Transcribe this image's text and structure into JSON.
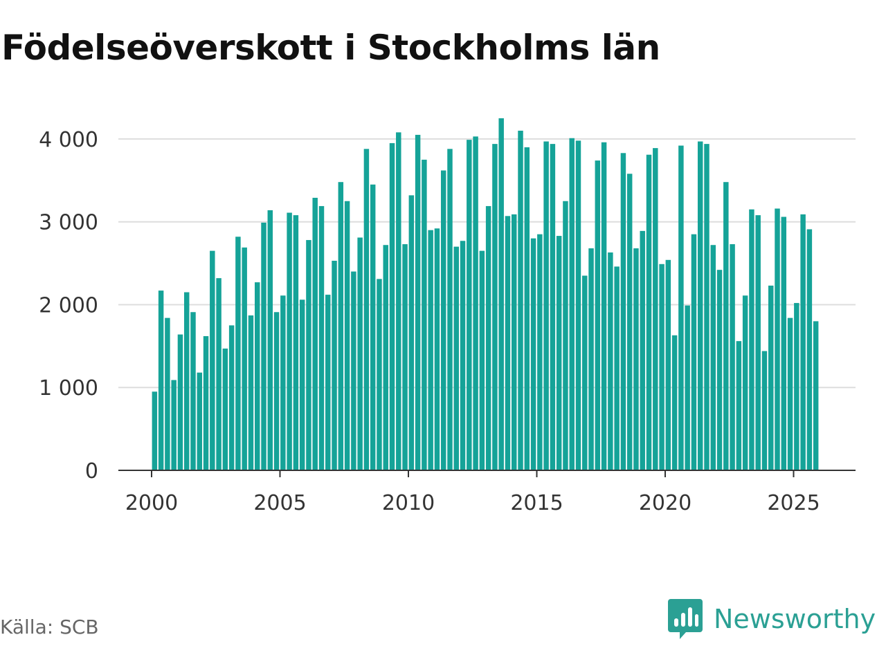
{
  "title": "Födelseöverskott i Stockholms län",
  "source": "Källa: SCB",
  "brand": "Newsworthy",
  "colors": {
    "bar": "#15a398",
    "brand": "#2ba094",
    "grid": "#dddddd",
    "axis": "#333333"
  },
  "chart_data": {
    "type": "bar",
    "title": "Födelseöverskott i Stockholms län",
    "xlabel": "",
    "ylabel": "",
    "ylim": [
      0,
      4300
    ],
    "xlim": [
      1999.7,
      2026.9
    ],
    "grid": true,
    "legend": "none",
    "frequency": "quarterly",
    "start_period": "2000 Q1",
    "x_ticks": [
      2000,
      2005,
      2010,
      2015,
      2020,
      2025
    ],
    "x_tick_labels": [
      "2000",
      "2005",
      "2010",
      "2015",
      "2020",
      "2025"
    ],
    "y_ticks": [
      0,
      1000,
      2000,
      3000,
      4000
    ],
    "y_tick_labels": [
      "0",
      "1 000",
      "2 000",
      "3 000",
      "4 000"
    ],
    "values": [
      950,
      2170,
      1840,
      1090,
      1640,
      2150,
      1910,
      1180,
      1620,
      2650,
      2320,
      1470,
      1750,
      2820,
      2690,
      1870,
      2270,
      2990,
      3140,
      1910,
      2110,
      3110,
      3080,
      2060,
      2780,
      3290,
      3190,
      2120,
      2530,
      3480,
      3250,
      2400,
      2810,
      3880,
      3450,
      2310,
      2720,
      3950,
      4080,
      2730,
      3320,
      4050,
      3750,
      2900,
      2920,
      3620,
      3880,
      2700,
      2770,
      3990,
      4030,
      2650,
      3190,
      3940,
      4250,
      3070,
      3090,
      4100,
      3900,
      2800,
      2850,
      3970,
      3940,
      2830,
      3250,
      4010,
      3980,
      2350,
      2680,
      3740,
      3960,
      2630,
      2460,
      3830,
      3580,
      2680,
      2890,
      3810,
      3890,
      2490,
      2540,
      1630,
      3920,
      1990,
      2850,
      3970,
      3940,
      2720,
      2420,
      3480,
      2730,
      1560,
      2110,
      3150,
      3080,
      1440,
      2230,
      3160,
      3060,
      1840,
      2020,
      3090,
      2910,
      1800
    ]
  }
}
